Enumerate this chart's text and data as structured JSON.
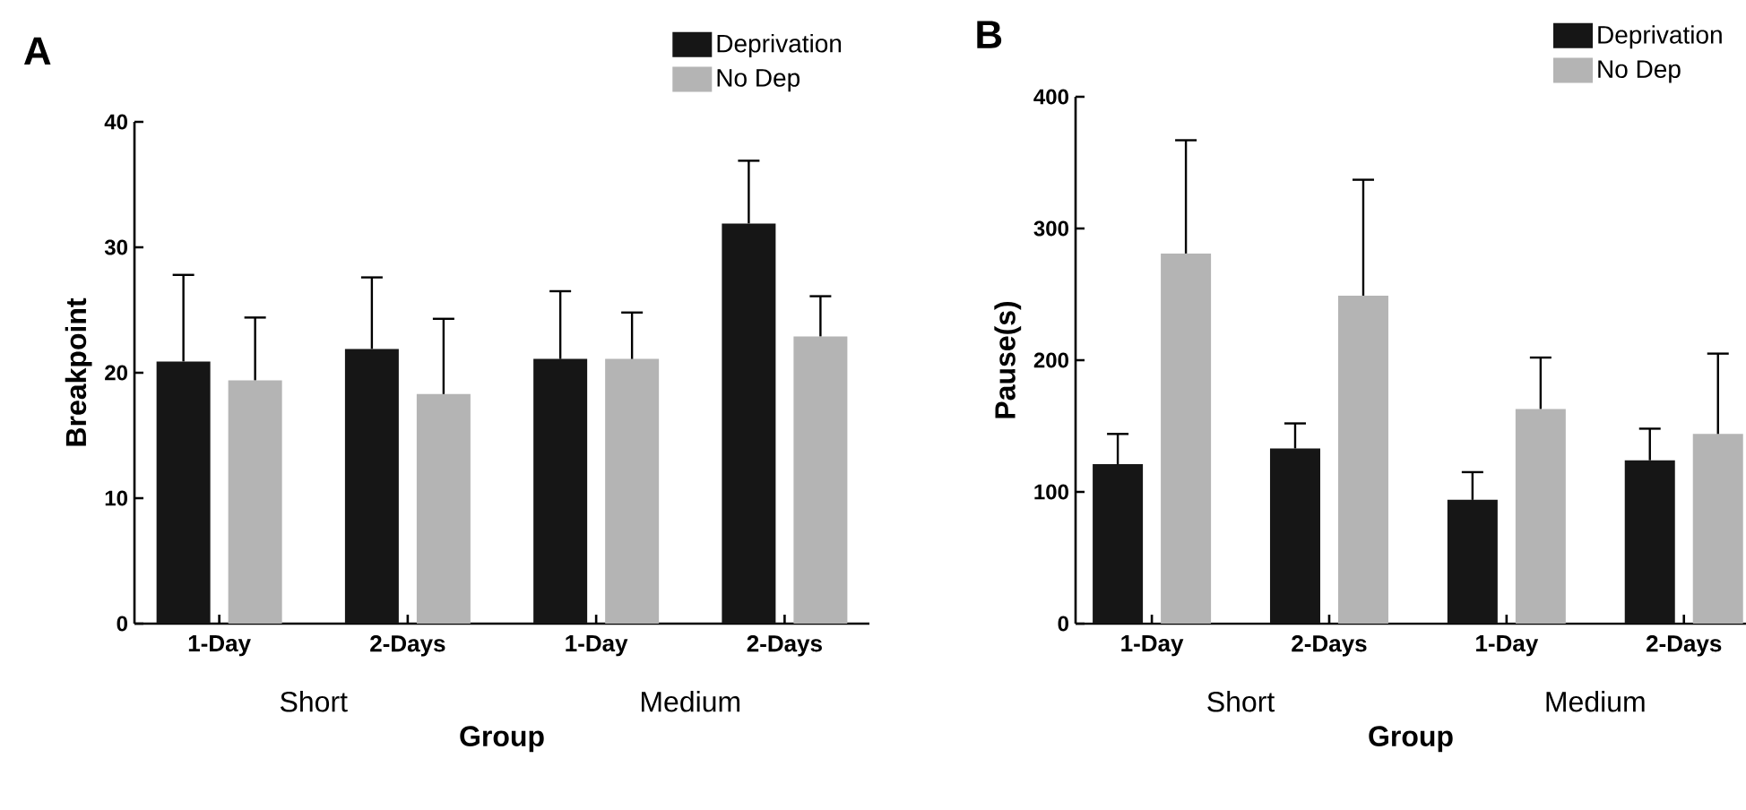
{
  "chart_data": [
    {
      "type": "bar",
      "title": "A",
      "xlabel": "Group",
      "ylabel": "Breakpoint",
      "categories": [
        "1-Day",
        "2-Days",
        "1-Day",
        "2-Days"
      ],
      "series": [
        {
          "name": "Deprivation",
          "color": "#161616",
          "values": [
            20.9,
            21.9,
            21.1,
            31.9
          ],
          "errors": [
            [
              20.9,
              27.8
            ],
            [
              21.9,
              27.6
            ],
            [
              21.1,
              26.5
            ],
            [
              31.9,
              36.9
            ]
          ]
        },
        {
          "name": "No Dep",
          "color": "#b4b4b4",
          "values": [
            19.4,
            18.3,
            21.1,
            22.9
          ],
          "errors": [
            [
              19.4,
              24.4
            ],
            [
              18.3,
              24.3
            ],
            [
              21.1,
              24.8
            ],
            [
              22.9,
              26.1
            ]
          ]
        }
      ],
      "ylim": [
        0,
        40
      ],
      "yticks": [
        0,
        10,
        20,
        30,
        40
      ],
      "legend": "top right",
      "annotations": [
        "Short",
        "Medium"
      ]
    },
    {
      "type": "bar",
      "title": "B",
      "xlabel": "Group",
      "ylabel": "Pause(s)",
      "categories": [
        "1-Day",
        "2-Days",
        "1-Day",
        "2-Days"
      ],
      "series": [
        {
          "name": "Deprivation",
          "color": "#161616",
          "values": [
            121,
            133,
            94,
            124
          ],
          "errors": [
            [
              121,
              144
            ],
            [
              133,
              152
            ],
            [
              94,
              115
            ],
            [
              124,
              148
            ]
          ]
        },
        {
          "name": "No Dep",
          "color": "#b4b4b4",
          "values": [
            281,
            249,
            163,
            144
          ],
          "errors": [
            [
              281,
              367
            ],
            [
              249,
              337
            ],
            [
              163,
              202
            ],
            [
              144,
              205
            ]
          ]
        }
      ],
      "ylim": [
        0,
        400
      ],
      "yticks": [
        0,
        100,
        200,
        300,
        400
      ],
      "legend": "top right",
      "annotations": [
        "Short",
        "Medium"
      ]
    }
  ]
}
